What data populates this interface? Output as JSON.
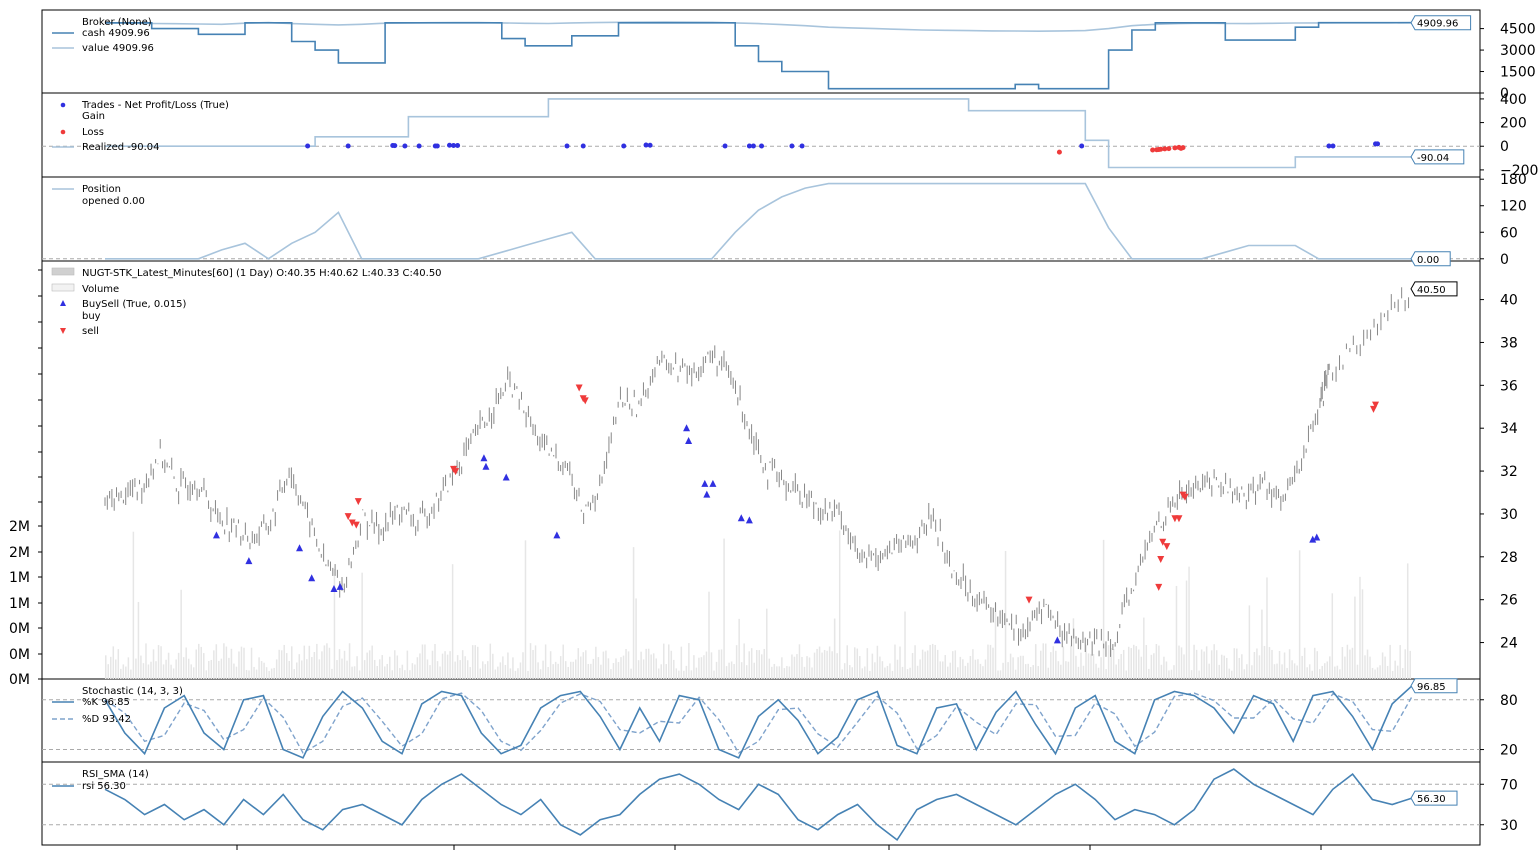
{
  "chart_data": [
    {
      "type": "line",
      "panel": "broker",
      "legend": [
        "Broker (None)",
        "cash 4909.96",
        "value 4909.96"
      ],
      "series": [
        {
          "name": "cash",
          "color": "#4682b4",
          "values": [
            4905,
            4905,
            4500,
            4500,
            4100,
            4100,
            4905,
            4905,
            3600,
            3000,
            2100,
            2100,
            4905,
            4905,
            4905,
            4905,
            4905,
            3800,
            3300,
            3300,
            4000,
            4000,
            4905,
            4905,
            4905,
            4905,
            4905,
            3300,
            2200,
            1500,
            1500,
            300,
            300,
            300,
            300,
            300,
            300,
            300,
            300,
            600,
            300,
            300,
            300,
            3000,
            4400,
            4905,
            4905,
            4905,
            3700,
            3700,
            3700,
            4600,
            4909.96,
            4909.96,
            4909.96,
            4909.96,
            4909.96
          ]
        },
        {
          "name": "value",
          "color": "#a8c4dc",
          "values": [
            4890,
            4880,
            4860,
            4840,
            4820,
            4800,
            4880,
            4920,
            4850,
            4800,
            4760,
            4800,
            4880,
            4900,
            4910,
            4920,
            4930,
            4900,
            4870,
            4860,
            4900,
            4920,
            4940,
            4950,
            4960,
            4950,
            4940,
            4900,
            4850,
            4780,
            4700,
            4600,
            4550,
            4500,
            4450,
            4400,
            4380,
            4360,
            4340,
            4330,
            4320,
            4340,
            4360,
            4500,
            4700,
            4800,
            4850,
            4880,
            4860,
            4850,
            4870,
            4890,
            4900,
            4905,
            4908,
            4909,
            4909.96
          ]
        }
      ],
      "last_value_label": "4909.96",
      "ylim": [
        0,
        5800
      ],
      "yticks": [
        0,
        1500,
        3000,
        4500
      ],
      "ytick_labels": [
        "0",
        "1500",
        "3000",
        "4500"
      ]
    },
    {
      "type": "scatter",
      "panel": "trades",
      "legend": [
        "Trades - Net Profit/Loss (True)",
        "Gain",
        "Loss",
        "Realized -90.04"
      ],
      "gain_color": "#3030e0",
      "loss_color": "#ef3b3b",
      "gains": [
        [
          100,
          2
        ],
        [
          120,
          2
        ],
        [
          142,
          6
        ],
        [
          143,
          5
        ],
        [
          148,
          2
        ],
        [
          155,
          2
        ],
        [
          163,
          2
        ],
        [
          164,
          2
        ],
        [
          170,
          8
        ],
        [
          172,
          6
        ],
        [
          174,
          6
        ],
        [
          228,
          2
        ],
        [
          236,
          2
        ],
        [
          256,
          2
        ],
        [
          267,
          10
        ],
        [
          269,
          8
        ],
        [
          306,
          2
        ],
        [
          318,
          2
        ],
        [
          320,
          2
        ],
        [
          324,
          2
        ],
        [
          339,
          2
        ],
        [
          344,
          2
        ],
        [
          482,
          2
        ],
        [
          604,
          2
        ],
        [
          606,
          2
        ],
        [
          627,
          20
        ],
        [
          628,
          20
        ]
      ],
      "losses": [
        [
          471,
          -50
        ],
        [
          517,
          -32
        ],
        [
          519,
          -30
        ],
        [
          520,
          -28
        ],
        [
          521,
          -25
        ],
        [
          523,
          -22
        ],
        [
          525,
          -20
        ],
        [
          528,
          -14
        ],
        [
          530,
          -10
        ],
        [
          531,
          -18
        ],
        [
          532,
          -12
        ]
      ],
      "realized": [
        0,
        0,
        0,
        0,
        0,
        0,
        0,
        0,
        0,
        80,
        80,
        80,
        80,
        250,
        250,
        250,
        250,
        250,
        250,
        400,
        400,
        400,
        400,
        400,
        400,
        400,
        400,
        400,
        400,
        400,
        400,
        400,
        400,
        400,
        400,
        400,
        400,
        300,
        300,
        300,
        300,
        300,
        50,
        -180,
        -180,
        -180,
        -180,
        -180,
        -180,
        -180,
        -180,
        -90.04,
        -90.04,
        -90.04,
        -90.04,
        -90.04,
        -90.04
      ],
      "last_value_label": "-90.04",
      "ylim": [
        -260,
        450
      ],
      "yticks": [
        -200,
        0,
        200,
        400
      ],
      "ytick_labels": [
        "−200",
        "0",
        "200",
        "400"
      ]
    },
    {
      "type": "line",
      "panel": "position",
      "legend": [
        "Position",
        "opened 0.00"
      ],
      "color": "#a8c4dc",
      "values": [
        0,
        0,
        0,
        0,
        0,
        20,
        35,
        0,
        35,
        60,
        105,
        0,
        0,
        0,
        0,
        0,
        0,
        15,
        30,
        45,
        60,
        0,
        0,
        0,
        0,
        0,
        0,
        60,
        110,
        140,
        160,
        170,
        170,
        170,
        170,
        170,
        170,
        170,
        170,
        170,
        170,
        170,
        170,
        70,
        0,
        0,
        0,
        0,
        15,
        30,
        30,
        30,
        0,
        0,
        0,
        0,
        0
      ],
      "last_value_label": "0.00",
      "ylim": [
        -5,
        185
      ],
      "yticks": [
        0,
        60,
        120,
        180
      ],
      "ytick_labels": [
        "0",
        "60",
        "120",
        "180"
      ]
    },
    {
      "type": "line",
      "panel": "price",
      "legend": [
        "NUGT-STK_Latest_Minutes[60] (1 Day) O:40.35 H:40.62 L:40.33 C:40.50",
        "Volume",
        "BuySell (True, 0.015)",
        "buy",
        "sell"
      ],
      "price_color": "#808080",
      "volume_color": "#e6e6e6",
      "buy_color": "#3030e0",
      "sell_color": "#ef3b3b",
      "x": [
        0,
        10,
        20,
        30,
        40,
        50,
        60,
        70,
        80,
        90,
        100,
        110,
        120,
        130,
        140,
        150,
        160,
        170,
        180,
        190,
        200,
        210,
        220,
        230,
        240,
        250,
        260,
        270,
        280,
        290,
        300,
        310,
        320,
        330,
        340,
        350,
        360,
        370,
        380,
        390,
        400,
        410,
        420,
        430,
        440,
        450,
        460,
        470,
        480,
        490,
        500,
        510,
        520,
        530,
        540,
        550,
        560,
        570,
        580,
        590,
        600,
        610,
        620,
        630,
        640,
        650,
        660
      ],
      "close": [
        30.5,
        30.9,
        31.3,
        32.8,
        31.2,
        31.5,
        30.0,
        29.4,
        28.8,
        29.6,
        32.1,
        29.9,
        27.6,
        26.6,
        29.8,
        29.3,
        30.2,
        29.5,
        30.6,
        31.9,
        33.5,
        34.8,
        36.2,
        34.3,
        32.9,
        32.4,
        30.0,
        31.5,
        35.3,
        35.0,
        37.2,
        36.8,
        36.5,
        37.5,
        36.3,
        34.1,
        32.0,
        31.5,
        30.8,
        30.2,
        30.0,
        27.8,
        28.1,
        28.4,
        28.8,
        29.9,
        27.4,
        26.5,
        25.5,
        25.2,
        24.4,
        25.8,
        24.5,
        24.1,
        23.9,
        24.4,
        27.0,
        29.3,
        30.6,
        31.2,
        31.6,
        31.2,
        30.8,
        31.5,
        30.5,
        32.5,
        35.0
      ],
      "close_tail": [
        36.5,
        38.0,
        39.0,
        40.5
      ],
      "buys": [
        [
          55,
          29.0
        ],
        [
          71,
          27.8
        ],
        [
          96,
          28.4
        ],
        [
          102,
          27.0
        ],
        [
          113,
          26.5
        ],
        [
          116,
          26.6
        ],
        [
          187,
          32.6
        ],
        [
          188,
          32.2
        ],
        [
          198,
          31.7
        ],
        [
          223,
          29.0
        ],
        [
          287,
          34.0
        ],
        [
          288,
          33.4
        ],
        [
          296,
          31.4
        ],
        [
          297,
          30.9
        ],
        [
          300,
          31.4
        ],
        [
          314,
          29.8
        ],
        [
          318,
          29.7
        ],
        [
          470,
          24.1
        ],
        [
          596,
          28.8
        ],
        [
          598,
          28.9
        ]
      ],
      "sells": [
        [
          120,
          29.9
        ],
        [
          122,
          29.6
        ],
        [
          124,
          29.5
        ],
        [
          125,
          30.6
        ],
        [
          172,
          32.1
        ],
        [
          173,
          32.0
        ],
        [
          234,
          35.9
        ],
        [
          236,
          35.4
        ],
        [
          237,
          35.3
        ],
        [
          456,
          26.0
        ],
        [
          520,
          26.6
        ],
        [
          521,
          27.9
        ],
        [
          522,
          28.7
        ],
        [
          524,
          28.5
        ],
        [
          528,
          29.8
        ],
        [
          530,
          29.8
        ],
        [
          532,
          30.9
        ],
        [
          533,
          30.8
        ],
        [
          626,
          34.9
        ],
        [
          627,
          35.1
        ]
      ],
      "last_value_label": "40.50",
      "xlim": [
        -30,
        645
      ],
      "ylim": [
        22.3,
        41.8
      ],
      "yticks": [
        24,
        26,
        28,
        30,
        32,
        34,
        36,
        38,
        40
      ],
      "ytick_labels": [
        "24",
        "26",
        "28",
        "30",
        "32",
        "34",
        "36",
        "38",
        "40"
      ],
      "volume_tick_labels": [
        "0M",
        "0M",
        "0M",
        "1M",
        "1M",
        "2M",
        "2M"
      ]
    },
    {
      "type": "line",
      "panel": "stochastic",
      "legend": [
        "Stochastic (14, 3, 3)",
        "%K 96.85",
        "%D 93.42"
      ],
      "k_color": "#4682b4",
      "d_color": "#7fa3cc",
      "values": [
        80,
        40,
        15,
        70,
        85,
        40,
        20,
        80,
        85,
        20,
        10,
        60,
        90,
        70,
        30,
        15,
        75,
        90,
        85,
        40,
        15,
        25,
        70,
        85,
        90,
        60,
        20,
        70,
        30,
        85,
        80,
        20,
        10,
        60,
        80,
        55,
        15,
        35,
        80,
        90,
        25,
        15,
        70,
        75,
        20,
        65,
        90,
        50,
        15,
        70,
        85,
        30,
        15,
        80,
        90,
        85,
        70,
        40,
        85,
        75,
        30,
        85,
        90,
        60,
        20,
        75,
        96.85
      ],
      "last_value_label": "96.85",
      "ylim": [
        5,
        105
      ],
      "yticks": [
        20,
        80
      ],
      "ytick_labels": [
        "20",
        "80"
      ],
      "ref_lines": [
        20,
        80
      ]
    },
    {
      "type": "line",
      "panel": "rsi",
      "legend": [
        "RSI_SMA (14)",
        "rsi 56.30"
      ],
      "color": "#4682b4",
      "values": [
        65,
        55,
        40,
        50,
        35,
        45,
        30,
        55,
        40,
        60,
        35,
        25,
        45,
        50,
        40,
        30,
        55,
        70,
        80,
        65,
        50,
        40,
        55,
        30,
        20,
        35,
        40,
        60,
        75,
        80,
        70,
        55,
        45,
        70,
        60,
        35,
        25,
        40,
        50,
        30,
        15,
        45,
        55,
        60,
        50,
        40,
        30,
        45,
        60,
        70,
        55,
        35,
        45,
        40,
        30,
        45,
        75,
        85,
        70,
        60,
        50,
        40,
        65,
        80,
        55,
        50,
        56.3
      ],
      "last_value_label": "56.30",
      "ylim": [
        10,
        92
      ],
      "yticks": [
        30,
        70
      ],
      "ytick_labels": [
        "30",
        "70"
      ],
      "ref_lines": [
        30,
        70
      ]
    }
  ]
}
